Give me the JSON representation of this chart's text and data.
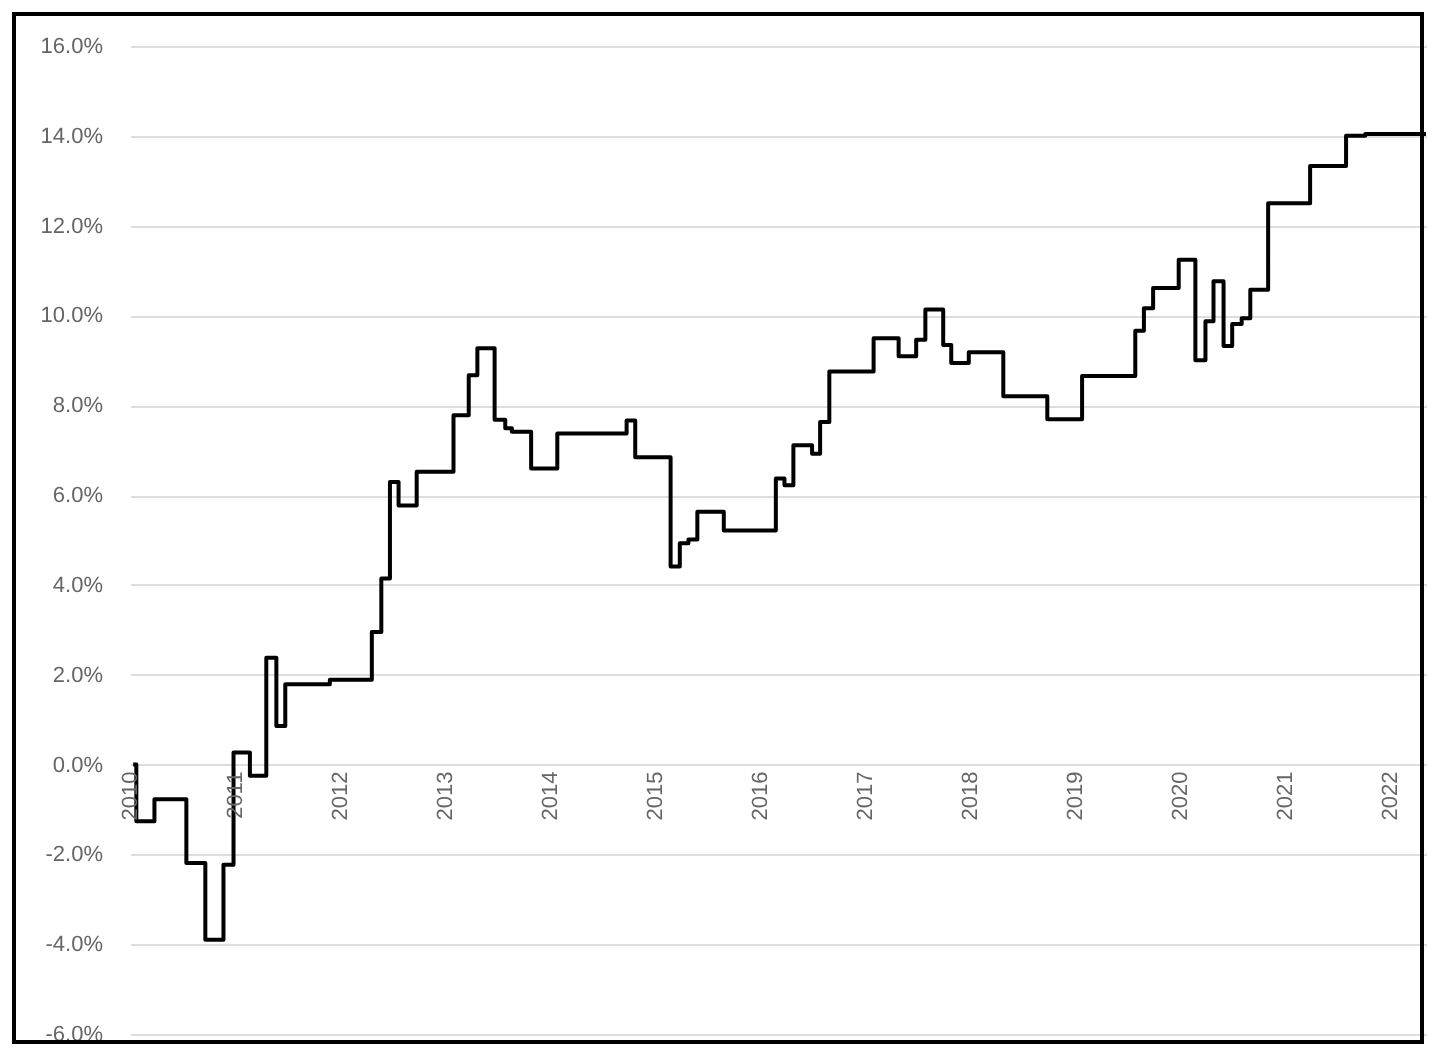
{
  "chart_data": {
    "type": "step",
    "x": [
      "2010-01-12",
      "2010-01-23",
      "2010-03-27",
      "2010-07-16",
      "2010-09-20",
      "2010-11-22",
      "2010-12-27",
      "2011-02-22",
      "2011-04-20",
      "2011-05-25",
      "2011-06-25",
      "2011-11-27",
      "2012-04-21",
      "2012-05-24",
      "2012-06-23",
      "2012-07-23",
      "2012-09-24",
      "2013-01-30",
      "2013-03-24",
      "2013-04-23",
      "2013-06-22",
      "2013-07-29",
      "2013-08-21",
      "2013-10-27",
      "2014-01-26",
      "2014-09-24",
      "2014-10-24",
      "2015-02-24",
      "2015-03-28",
      "2015-04-27",
      "2015-05-28",
      "2015-08-28",
      "2016-02-25",
      "2016-03-26",
      "2016-04-26",
      "2016-06-30",
      "2016-07-28",
      "2016-08-29",
      "2017-01-30",
      "2017-04-27",
      "2017-06-27",
      "2017-07-29",
      "2017-09-29",
      "2017-10-27",
      "2017-12-27",
      "2018-04-26",
      "2018-09-26",
      "2019-01-25",
      "2019-07-29",
      "2019-08-28",
      "2019-09-29",
      "2019-12-27",
      "2020-02-23",
      "2020-03-29",
      "2020-04-26",
      "2020-05-31",
      "2020-06-30",
      "2020-08-02",
      "2020-09-01",
      "2020-11-02",
      "2021-03-28",
      "2021-07-31",
      "2021-10-06",
      "2022-05-05"
    ],
    "series": [
      {
        "color": "#000000",
        "values": [
          0,
          -1.26,
          -0.77,
          -2.19,
          -3.9,
          -2.23,
          0.27,
          -0.25,
          2.38,
          0.86,
          1.79,
          1.89,
          2.95,
          4.14,
          6.29,
          5.77,
          6.52,
          7.78,
          8.67,
          9.27,
          7.68,
          7.49,
          7.41,
          6.59,
          7.37,
          7.66,
          6.84,
          4.41,
          4.93,
          5.01,
          5.63,
          5.21,
          6.37,
          6.22,
          7.11,
          6.92,
          7.63,
          8.75,
          9.49,
          9.09,
          9.46,
          10.13,
          9.34,
          8.94,
          9.18,
          8.2,
          7.69,
          8.65,
          9.66,
          10.16,
          10.61,
          11.24,
          9.0,
          9.87,
          10.76,
          9.32,
          9.81,
          9.94,
          10.57,
          12.5,
          13.33,
          14.0,
          14.04,
          14.04
        ]
      }
    ],
    "xlim": [
      "2010-01-01",
      "2022-05-05"
    ],
    "xticks": [
      "2010",
      "2011",
      "2012",
      "2013",
      "2014",
      "2015",
      "2016",
      "2017",
      "2018",
      "2019",
      "2020",
      "2021",
      "2022"
    ],
    "ylim": [
      -6,
      16
    ],
    "yticks": [
      {
        "value": -6,
        "label": "-6.0%"
      },
      {
        "value": -4,
        "label": "-4.0%"
      },
      {
        "value": -2,
        "label": "-2.0%"
      },
      {
        "value": 0,
        "label": "0.0%"
      },
      {
        "value": 2,
        "label": "2.0%"
      },
      {
        "value": 4,
        "label": "4.0%"
      },
      {
        "value": 6,
        "label": "6.0%"
      },
      {
        "value": 8,
        "label": "8.0%"
      },
      {
        "value": 10,
        "label": "10.0%"
      },
      {
        "value": 12,
        "label": "12.0%"
      },
      {
        "value": 14,
        "label": "14.0%"
      },
      {
        "value": 16,
        "label": "16.0%"
      }
    ],
    "grid": "y",
    "line_style": "solid"
  }
}
